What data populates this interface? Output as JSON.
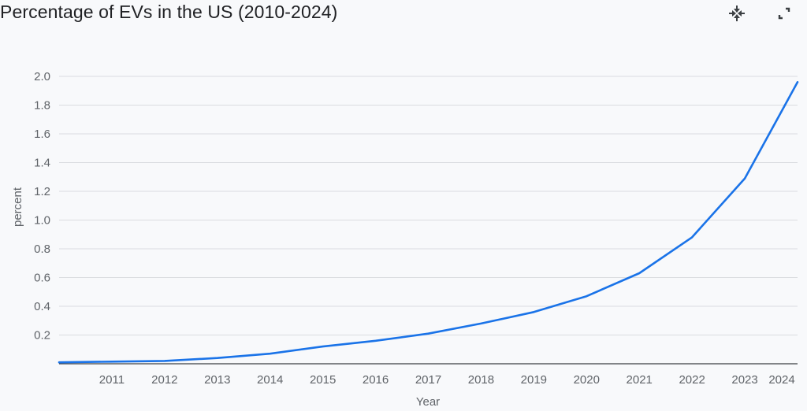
{
  "header": {
    "title": "Percentage of EVs in the US (2010-2024)",
    "collapse_icon": "collapse-arrows-icon",
    "fullscreen_icon": "fullscreen-icon"
  },
  "colors": {
    "line": "#1a73e8",
    "grid": "#dadce0",
    "axis": "#5f6368",
    "background": "#f8f9fb"
  },
  "chart_data": {
    "type": "line",
    "title": "Percentage of EVs in the US (2010-2024)",
    "xlabel": "Year",
    "ylabel": "percent",
    "ylim": [
      0,
      2.0
    ],
    "yticks": [
      "0.2",
      "0.4",
      "0.6",
      "0.8",
      "1.0",
      "1.2",
      "1.4",
      "1.6",
      "1.8",
      "2.0"
    ],
    "xticks": [
      "2011",
      "2012",
      "2013",
      "2014",
      "2015",
      "2016",
      "2017",
      "2018",
      "2019",
      "2020",
      "2021",
      "2022",
      "2023",
      "2024"
    ],
    "grid": true,
    "x": [
      2010,
      2011,
      2012,
      2013,
      2014,
      2015,
      2016,
      2017,
      2018,
      2019,
      2020,
      2021,
      2022,
      2023,
      2024
    ],
    "values": [
      0.01,
      0.015,
      0.02,
      0.04,
      0.07,
      0.12,
      0.16,
      0.21,
      0.28,
      0.36,
      0.47,
      0.63,
      0.88,
      1.29,
      1.96
    ]
  }
}
